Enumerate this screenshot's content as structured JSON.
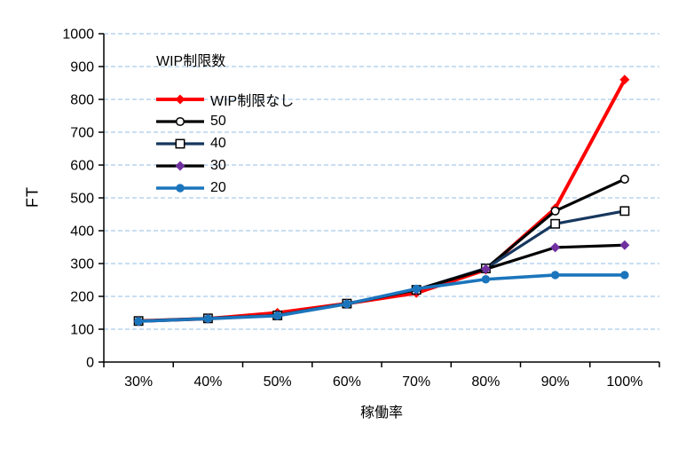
{
  "chart_data": {
    "type": "line",
    "title": "",
    "xlabel": "稼働率",
    "ylabel": "FT",
    "categories": [
      "30%",
      "40%",
      "50%",
      "60%",
      "70%",
      "80%",
      "90%",
      "100%"
    ],
    "ylim": [
      0,
      1000
    ],
    "y_ticks": [
      0,
      100,
      200,
      300,
      400,
      500,
      600,
      700,
      800,
      900,
      1000
    ],
    "grid": "horizontal-dashed",
    "legend": {
      "title": "WIP制限数",
      "position": "inside-top-left"
    },
    "series": [
      {
        "name": "WIP制限なし",
        "line_color": "#FF0000",
        "line_width": 4,
        "marker": "diamond-filled",
        "marker_color": "#FF0000",
        "values": [
          125,
          132,
          150,
          178,
          210,
          281,
          468,
          860
        ]
      },
      {
        "name": "50",
        "line_color": "#000000",
        "line_width": 3.2,
        "marker": "circle-open",
        "marker_color": "#000000",
        "values": [
          125,
          133,
          142,
          178,
          220,
          285,
          460,
          557
        ]
      },
      {
        "name": "40",
        "line_color": "#17375E",
        "line_width": 3.2,
        "marker": "square-open",
        "marker_color": "#000000",
        "values": [
          125,
          133,
          142,
          178,
          220,
          285,
          421,
          460
        ]
      },
      {
        "name": "30",
        "line_color": "#000000",
        "line_width": 3.2,
        "marker": "diamond-filled",
        "marker_color": "#7030A0",
        "values": [
          124,
          132,
          142,
          177,
          220,
          283,
          349,
          356
        ]
      },
      {
        "name": "20",
        "line_color": "#1B75BC",
        "line_width": 3.6,
        "marker": "circle-filled",
        "marker_color": "#1B75BC",
        "values": [
          124,
          132,
          141,
          177,
          223,
          252,
          265,
          265
        ]
      }
    ],
    "colors": {
      "gridline": "#A9CBEA",
      "axis": "#000000",
      "text": "#000000",
      "background": "#FFFFFF"
    }
  }
}
